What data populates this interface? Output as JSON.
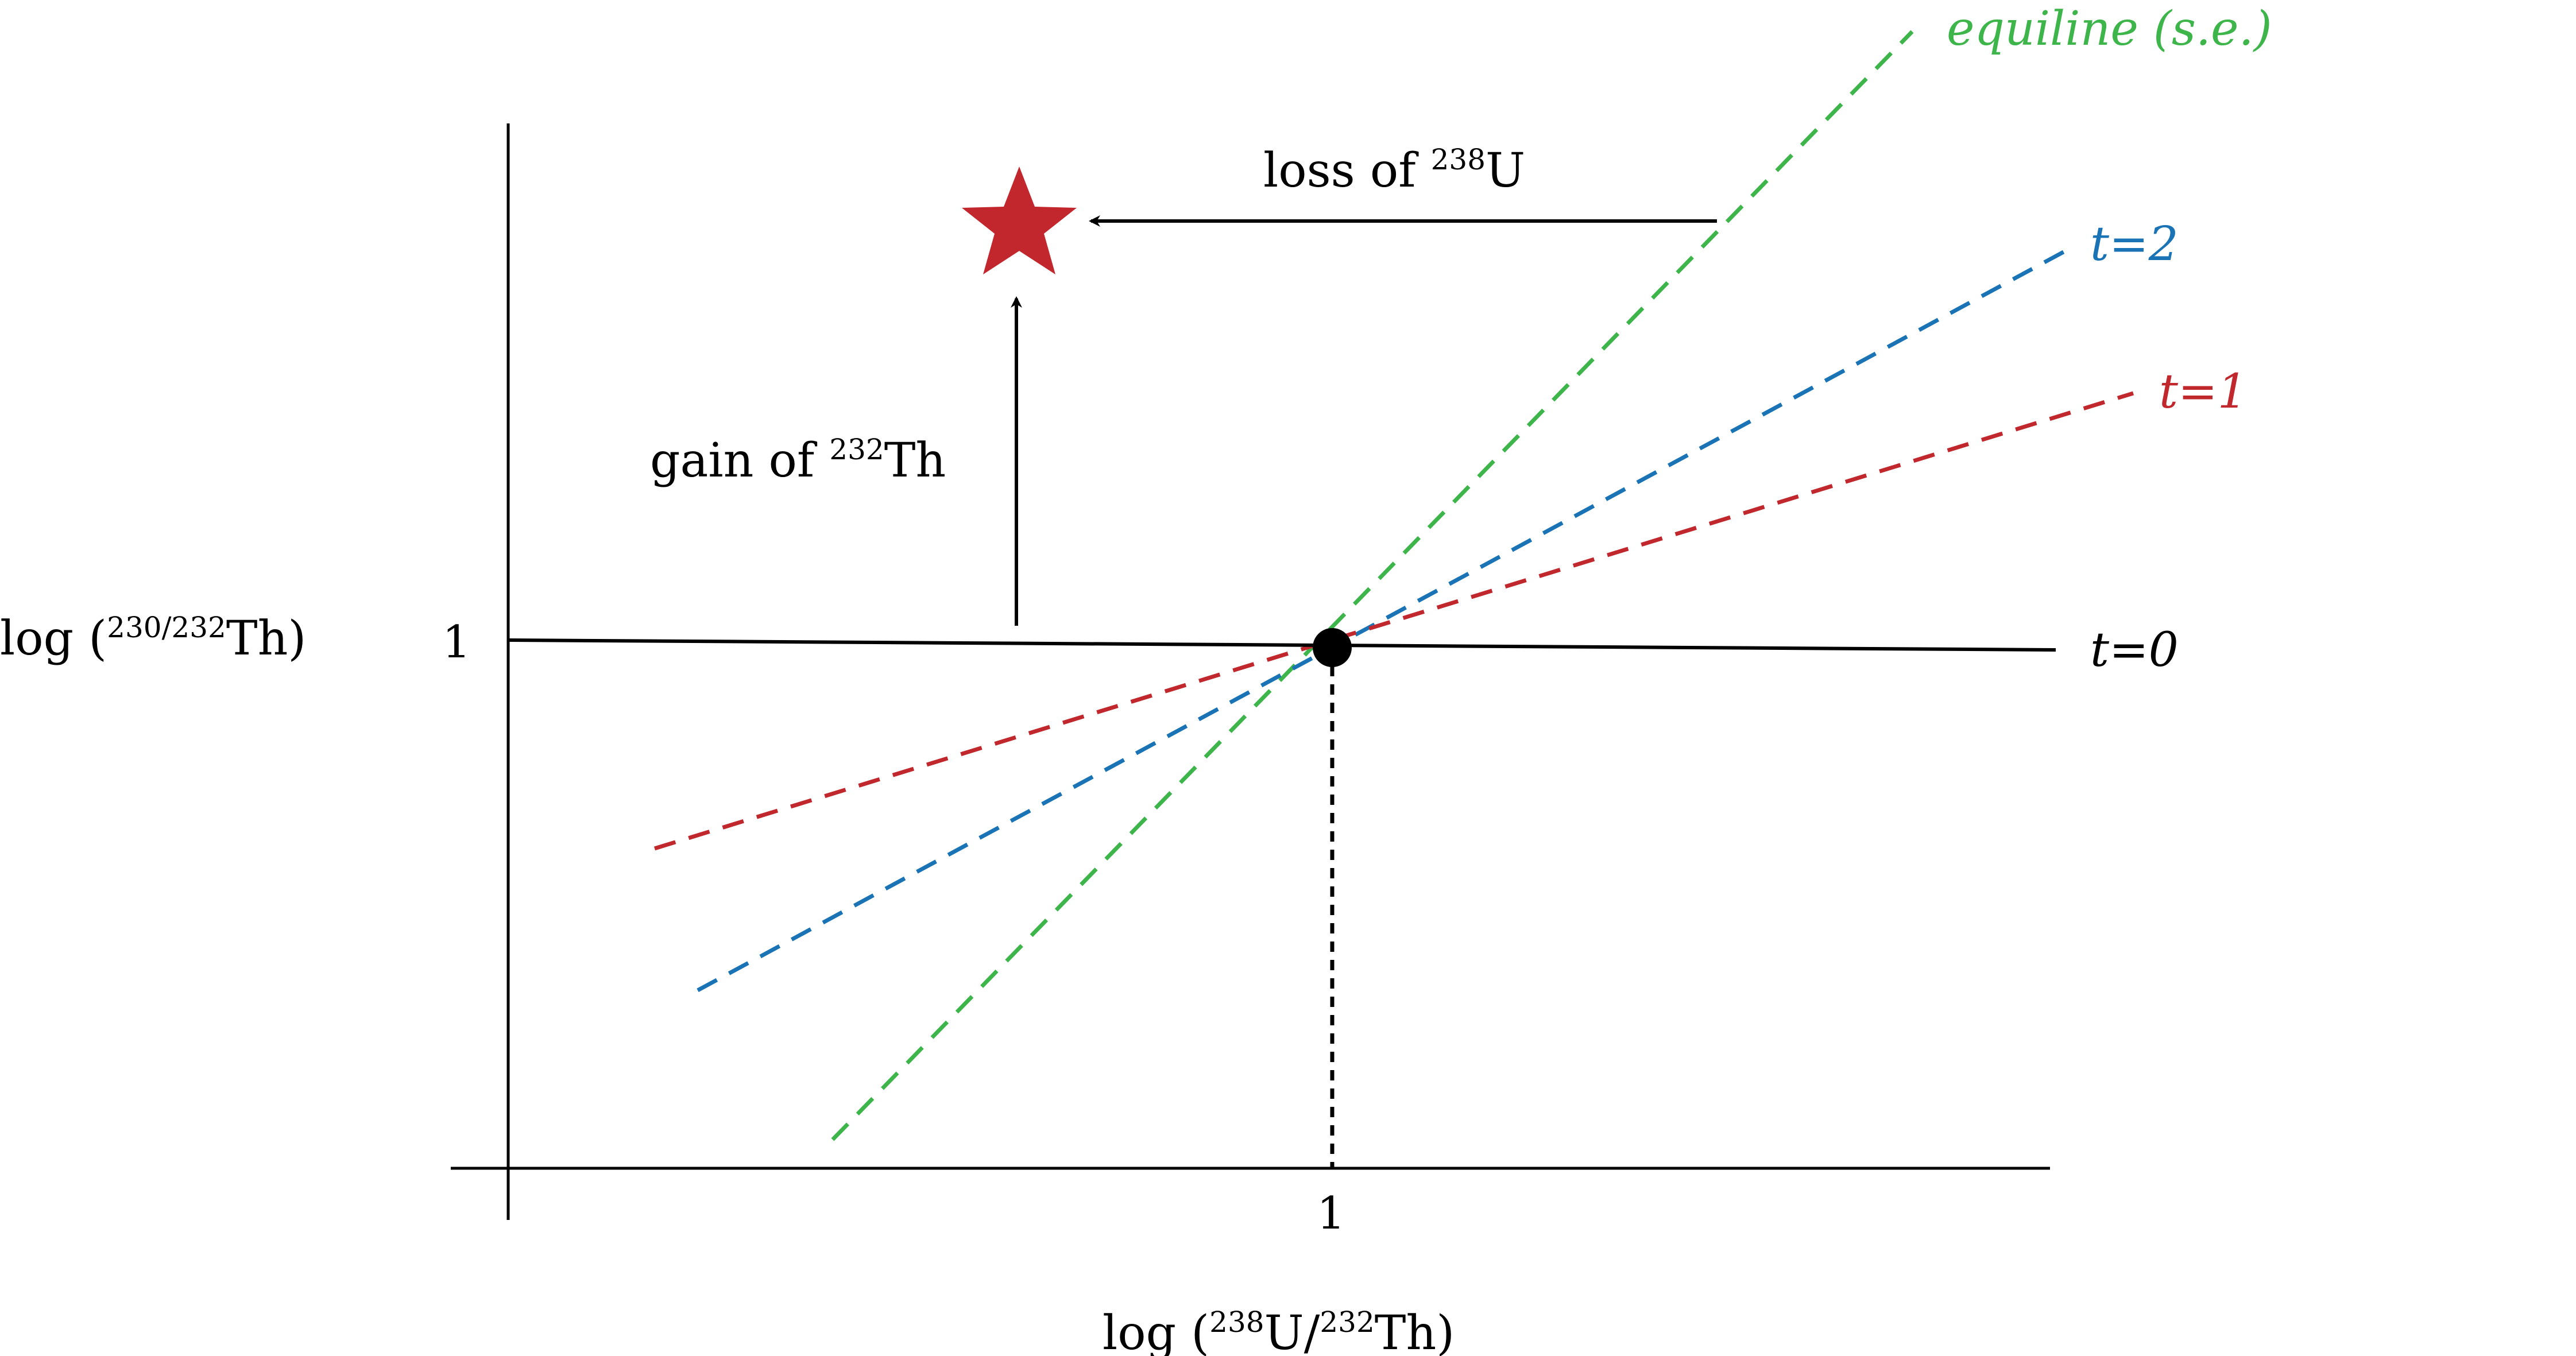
{
  "diagram": {
    "y_axis_label": {
      "prefix": "log (",
      "sup": "230/232",
      "suffix": "Th)"
    },
    "x_axis_label": {
      "prefix": "log (",
      "sup1": "238",
      "middle": "U/",
      "sup2": "232",
      "suffix": "Th)"
    },
    "y_tick_label": "1",
    "x_tick_label": "1",
    "annotations": {
      "loss": {
        "prefix": "loss of ",
        "sup": "238",
        "suffix": "U"
      },
      "gain": {
        "prefix": "gain of ",
        "sup": "232",
        "suffix": "Th"
      }
    },
    "lines": {
      "t0": {
        "label": "t=0",
        "color": "#000000"
      },
      "t1": {
        "label": "t=1",
        "color": "#c0282d"
      },
      "t2": {
        "label": "t=2",
        "color": "#1a73b5"
      },
      "equiline": {
        "label": "equiline (s.e.)",
        "color": "#3db54a"
      }
    },
    "marker_colors": {
      "point": "#000000",
      "star": "#c1272d"
    }
  }
}
